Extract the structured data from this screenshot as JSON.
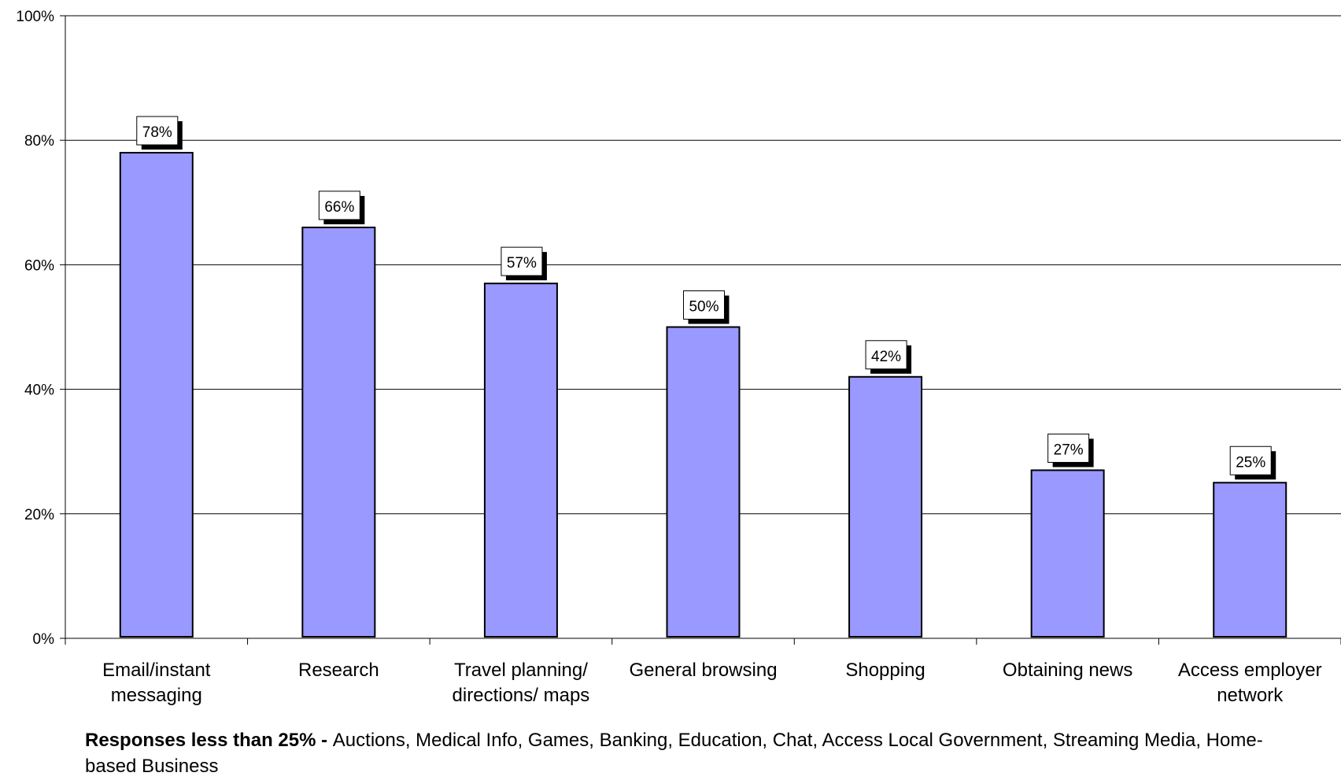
{
  "chart_data": {
    "type": "bar",
    "title": "",
    "xlabel": "",
    "ylabel": "",
    "ylim": [
      0,
      100
    ],
    "yticks": [
      0,
      20,
      40,
      60,
      80,
      100
    ],
    "ytick_labels": [
      "0%",
      "20%",
      "40%",
      "60%",
      "80%",
      "100%"
    ],
    "categories": [
      [
        "Email/instant",
        "messaging"
      ],
      [
        "Research"
      ],
      [
        "Travel planning/",
        "directions/ maps"
      ],
      [
        "General browsing"
      ],
      [
        "Shopping"
      ],
      [
        "Obtaining news"
      ],
      [
        "Access employer",
        "network"
      ]
    ],
    "values": [
      78,
      66,
      57,
      50,
      42,
      27,
      25
    ],
    "data_labels": [
      "78%",
      "66%",
      "57%",
      "50%",
      "42%",
      "27%",
      "25%"
    ],
    "bar_color": "#9999ff",
    "grid": true,
    "legend": "none"
  },
  "note": {
    "bold": "Responses less than 25% - ",
    "text": " Auctions, Medical Info, Games, Banking, Education, Chat, Access Local Government, Streaming Media, Home-based Business"
  }
}
